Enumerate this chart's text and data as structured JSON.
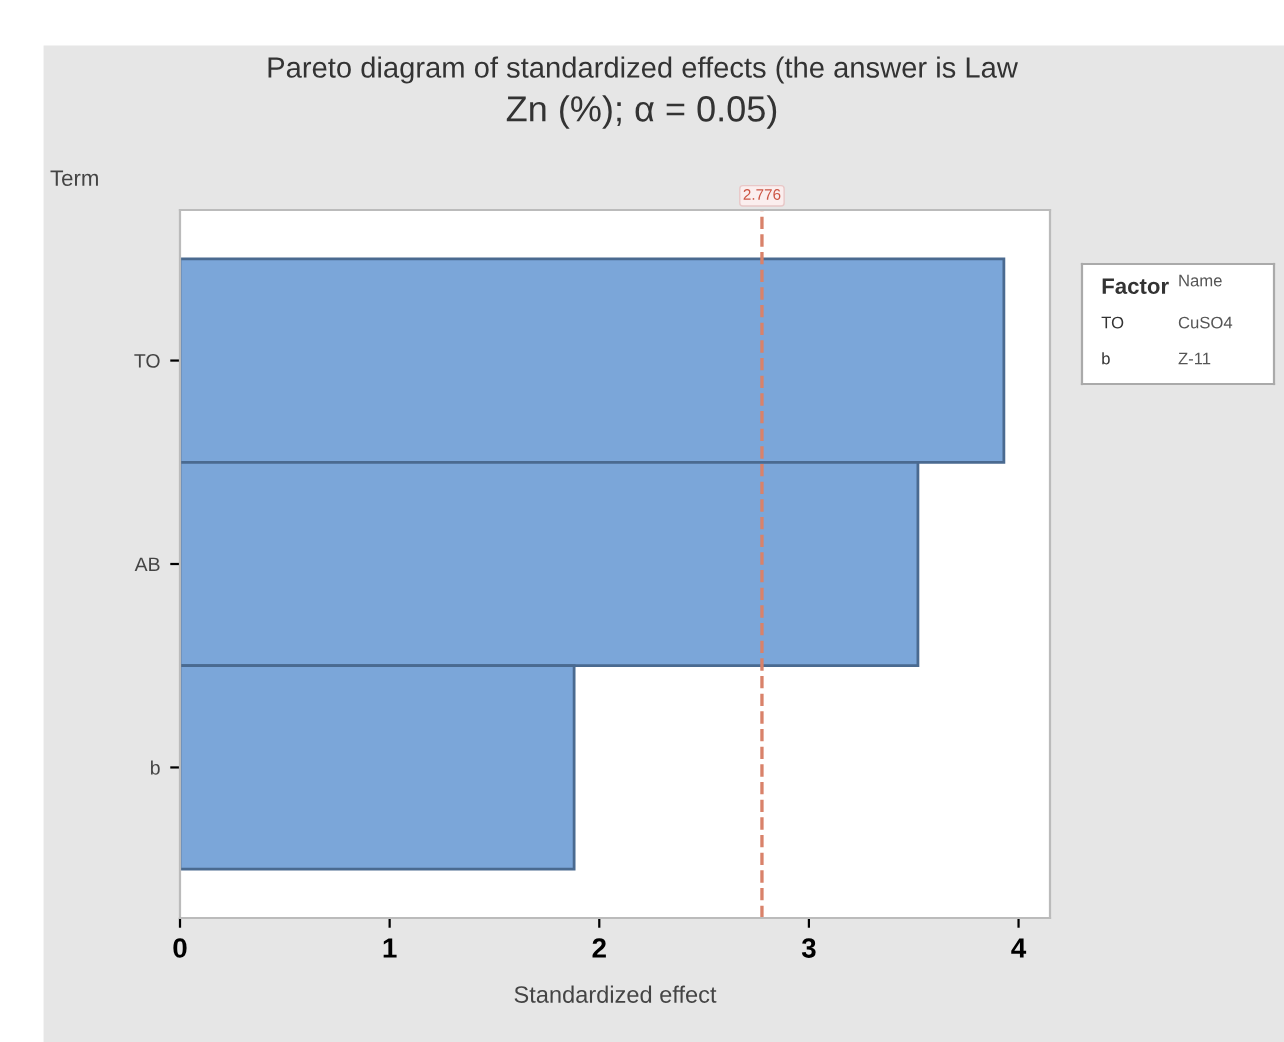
{
  "chart_data": {
    "type": "bar",
    "orientation": "horizontal",
    "title": "Pareto diagram of standardized effects (the answer is Law",
    "subtitle": "Zn (%); α = 0.05)",
    "ylabel": "Term",
    "xlabel": "Standardized effect",
    "categories": [
      "TO",
      "AB",
      "b"
    ],
    "values": [
      3.93,
      3.52,
      1.88
    ],
    "color": "#7ba6d9",
    "xlim": [
      0,
      4.15
    ],
    "xticks": [
      0,
      1,
      2,
      3,
      4
    ],
    "grid": false,
    "legend": false,
    "ref_lines": [
      {
        "axis": "x",
        "value": 2.776,
        "label": "2.776",
        "color": "#d9826a",
        "line_style": "dashed"
      }
    ],
    "annotations": [
      "Factor",
      "Name",
      "TO",
      "CuSO4",
      "b",
      "Z-11"
    ]
  }
}
